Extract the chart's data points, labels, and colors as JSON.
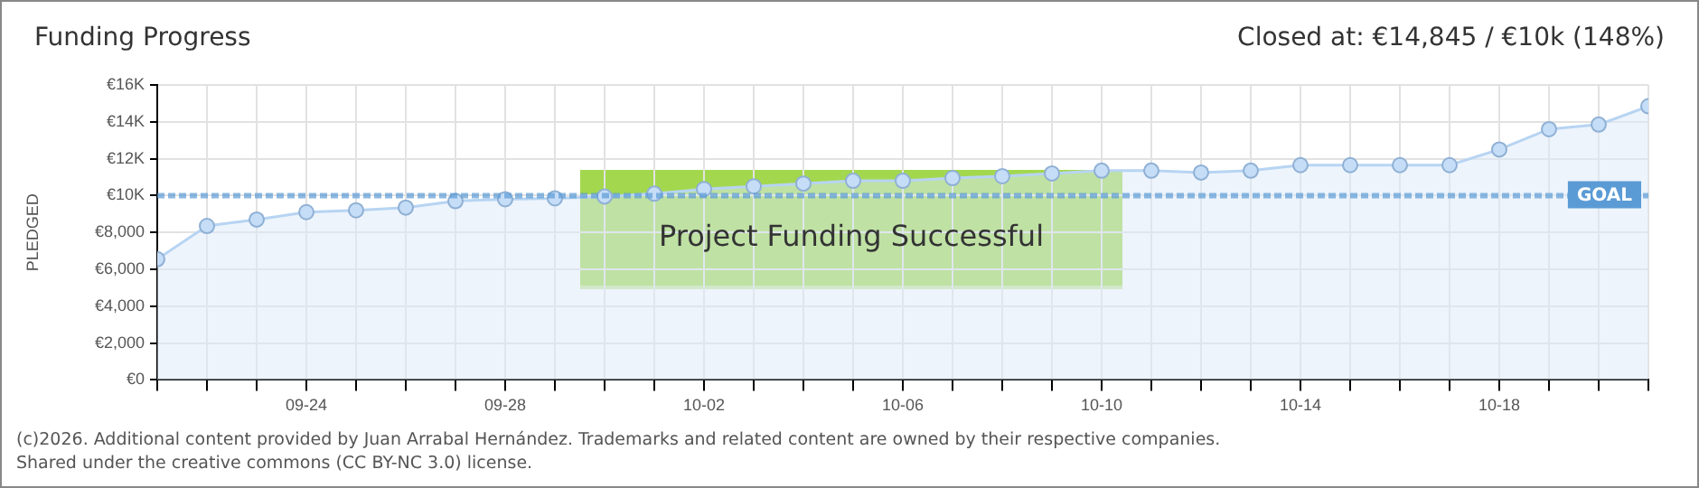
{
  "chart_data": {
    "type": "area",
    "title": "Funding Progress",
    "subtitle": "Closed at:  €14,845 /  €10k (148%)",
    "ylabel": "PLEDGED",
    "x": [
      "--09-21",
      "--09-22",
      "--09-23",
      "--09-24",
      "--09-25",
      "--09-26",
      "--09-27",
      "--09-28",
      "--09-29",
      "--09-30",
      "--10-01",
      "--10-02",
      "--10-03",
      "--10-04",
      "--10-05",
      "--10-06",
      "--10-07",
      "--10-08",
      "--10-09",
      "--10-10",
      "--10-11",
      "--10-12",
      "--10-13",
      "--10-14",
      "--10-15",
      "--10-16",
      "--10-17",
      "--10-18",
      "--10-19",
      "--10-20",
      "--10-21"
    ],
    "series": [
      {
        "color": "#b7d4f2",
        "values": [
          6550,
          8350,
          8700,
          9100,
          9200,
          9350,
          9700,
          9800,
          9850,
          9950,
          10100,
          10350,
          10500,
          10650,
          10800,
          10800,
          10950,
          11050,
          11200,
          11350,
          11350,
          11250,
          11350,
          11650,
          11650,
          11650,
          11650,
          12500,
          13600,
          13850,
          14845
        ]
      }
    ],
    "xlim": [
      "--09-21",
      "--10-21"
    ],
    "xticks": [
      {
        "value": "--09-21",
        "label": null
      },
      {
        "value": "--09-22",
        "label": null
      },
      {
        "value": "--09-23",
        "label": null
      },
      {
        "value": "--09-24",
        "label": "09-24"
      },
      {
        "value": "--09-25",
        "label": null
      },
      {
        "value": "--09-26",
        "label": null
      },
      {
        "value": "--09-27",
        "label": null
      },
      {
        "value": "--09-28",
        "label": "09-28"
      },
      {
        "value": "--09-29",
        "label": null
      },
      {
        "value": "--09-30",
        "label": null
      },
      {
        "value": "--10-01",
        "label": null
      },
      {
        "value": "--10-02",
        "label": "10-02"
      },
      {
        "value": "--10-03",
        "label": null
      },
      {
        "value": "--10-04",
        "label": null
      },
      {
        "value": "--10-05",
        "label": null
      },
      {
        "value": "--10-06",
        "label": "10-06"
      },
      {
        "value": "--10-07",
        "label": null
      },
      {
        "value": "--10-08",
        "label": null
      },
      {
        "value": "--10-09",
        "label": null
      },
      {
        "value": "--10-10",
        "label": "10-10"
      },
      {
        "value": "--10-11",
        "label": null
      },
      {
        "value": "--10-12",
        "label": null
      },
      {
        "value": "--10-13",
        "label": null
      },
      {
        "value": "--10-14",
        "label": "10-14"
      },
      {
        "value": "--10-15",
        "label": null
      },
      {
        "value": "--10-16",
        "label": null
      },
      {
        "value": "--10-17",
        "label": null
      },
      {
        "value": "--10-18",
        "label": "10-18"
      },
      {
        "value": "--10-19",
        "label": null
      },
      {
        "value": "--10-20",
        "label": null
      },
      {
        "value": "--10-21",
        "label": null
      }
    ],
    "ylim": [
      0,
      16000
    ],
    "yticks": [
      {
        "value": 0,
        "label": "€0"
      },
      {
        "value": 2000,
        "label": "€2,000"
      },
      {
        "value": 4000,
        "label": "€4,000"
      },
      {
        "value": 6000,
        "label": "€6,000"
      },
      {
        "value": 8000,
        "label": "€8,000"
      },
      {
        "value": 10000,
        "label": "€10K"
      },
      {
        "value": 12000,
        "label": "€12K"
      },
      {
        "value": 14000,
        "label": "€14K"
      },
      {
        "value": 16000,
        "label": "€16K"
      }
    ],
    "ref_lines": [
      {
        "axis": "y",
        "value": 10000,
        "label": "GOAL",
        "color": "#5b9bd5",
        "line_style": "dashed"
      }
    ],
    "annotations": [
      "Project Funding Successful",
      "(c)2026. Additional content provided by Juan Arrabal Hernández. Trademarks and related content are owned by their respective companies.",
      "Shared under the creative commons (CC BY-NC 3.0) license."
    ],
    "grid": true,
    "marker": "circle",
    "legend": false
  }
}
